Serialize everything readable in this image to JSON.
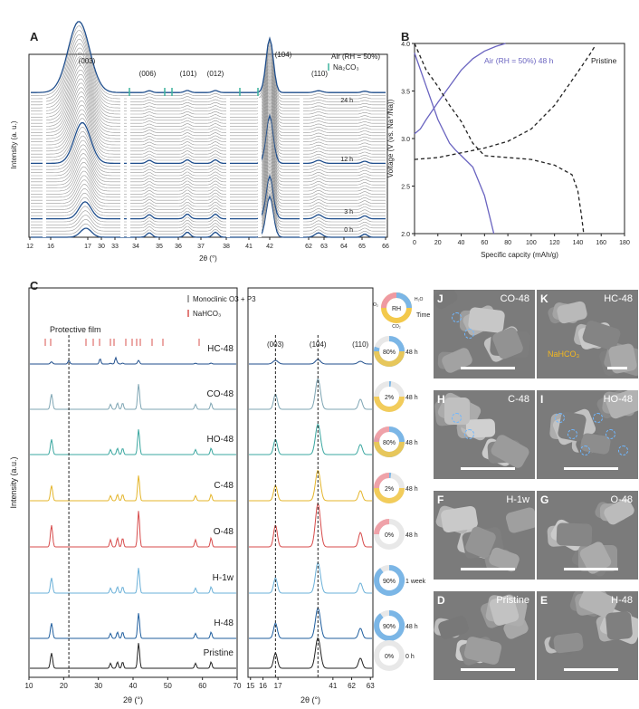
{
  "panel_a": {
    "letter": "A",
    "ylabel": "Intensity (a. u.)",
    "xlabel": "2θ (°)",
    "legend_air": "Air (RH = 50%)",
    "legend_na2co3": "Na₂CO₃",
    "peaks": [
      "(003)",
      "(006)",
      "(101)",
      "(012)",
      "(104)",
      "(110)"
    ],
    "time_labels": [
      "24 h",
      "12 h",
      "3 h",
      "0 h"
    ],
    "xticks": [
      "12",
      "16",
      "17",
      "30",
      "33",
      "34",
      "35",
      "36",
      "37",
      "38",
      "41",
      "42",
      "62",
      "63",
      "64",
      "65",
      "66"
    ]
  },
  "panel_b": {
    "letter": "B",
    "ylabel": "Voltage (V (vs. Na⁺/Na))",
    "xlabel": "Specific capcity (mAh/g)",
    "label_air": "Air (RH = 50%) 48 h",
    "label_pristine": "Pristine"
  },
  "panel_c": {
    "letter": "C",
    "ylabel": "Intensity (a.u.)",
    "xlabel_left": "2θ (°)",
    "xlabel_right": "2θ (°)",
    "legend_mono": "Monoclinic O3 + P3",
    "legend_nahco3": "NaHCO₃",
    "protective_film": "Protective film",
    "right_peaks": [
      "(003)",
      "(104)",
      "(110)"
    ],
    "samples": [
      "HC-48",
      "CO-48",
      "HO-48",
      "C-48",
      "O-48",
      "H-1w",
      "H-48",
      "Pristine"
    ],
    "rh_values": [
      "80%",
      "2%",
      "80%",
      "2%",
      "0%",
      "90%",
      "90%",
      "0%"
    ],
    "times": [
      "48 h",
      "48 h",
      "48 h",
      "48 h",
      "48 h",
      "1 week",
      "48 h",
      "0 h"
    ],
    "left_xticks": [
      "10",
      "20",
      "30",
      "40",
      "50",
      "60",
      "70"
    ],
    "right_xticks": [
      "15",
      "16",
      "17",
      "41",
      "62",
      "63"
    ],
    "legend_rh": "RH",
    "legend_time": "Time",
    "legend_o2": "O₂",
    "legend_co2": "CO₂",
    "legend_h2o": "H₂O"
  },
  "sem": {
    "panels": [
      {
        "letter": "J",
        "label": "CO-48"
      },
      {
        "letter": "K",
        "label": "HC-48",
        "extra": "NaHCO₃"
      },
      {
        "letter": "H",
        "label": "C-48"
      },
      {
        "letter": "I",
        "label": "HO-48"
      },
      {
        "letter": "F",
        "label": "H-1w"
      },
      {
        "letter": "G",
        "label": "O-48"
      },
      {
        "letter": "D",
        "label": "Pristine"
      },
      {
        "letter": "E",
        "label": "H-48"
      }
    ]
  },
  "chart_data": [
    {
      "type": "line",
      "title": "Panel B",
      "xlabel": "Specific capcity (mAh/g)",
      "ylabel": "Voltage (V (vs. Na⁺/Na))",
      "xlim": [
        0,
        180
      ],
      "ylim": [
        2.0,
        4.0
      ],
      "xticks": [
        0,
        20,
        40,
        60,
        80,
        100,
        120,
        140,
        160,
        180
      ],
      "yticks": [
        2.0,
        2.5,
        3.0,
        3.5,
        4.0
      ],
      "series": [
        {
          "name": "Air (RH = 50%) 48 h charge",
          "color": "#6a64c0",
          "dash": false,
          "x": [
            0,
            5,
            10,
            20,
            30,
            40,
            50,
            60,
            70,
            78
          ],
          "y": [
            3.05,
            3.1,
            3.2,
            3.38,
            3.55,
            3.72,
            3.84,
            3.92,
            3.97,
            4.0
          ]
        },
        {
          "name": "Air (RH = 50%) 48 h discharge",
          "color": "#6a64c0",
          "dash": false,
          "x": [
            0,
            10,
            20,
            30,
            35,
            40,
            50,
            60,
            65,
            68
          ],
          "y": [
            3.9,
            3.55,
            3.2,
            2.95,
            2.88,
            2.82,
            2.7,
            2.4,
            2.15,
            2.0
          ]
        },
        {
          "name": "Pristine charge",
          "color": "#222222",
          "dash": true,
          "x": [
            0,
            20,
            40,
            60,
            80,
            100,
            120,
            140,
            150,
            155
          ],
          "y": [
            2.78,
            2.8,
            2.85,
            2.9,
            2.97,
            3.1,
            3.35,
            3.7,
            3.88,
            3.98
          ]
        },
        {
          "name": "Pristine discharge",
          "color": "#222222",
          "dash": true,
          "x": [
            0,
            10,
            20,
            30,
            40,
            50,
            60,
            80,
            100,
            120,
            135,
            140,
            143,
            145
          ],
          "y": [
            4.0,
            3.72,
            3.55,
            3.35,
            3.18,
            2.95,
            2.82,
            2.8,
            2.78,
            2.72,
            2.62,
            2.45,
            2.2,
            2.0
          ]
        }
      ]
    }
  ]
}
